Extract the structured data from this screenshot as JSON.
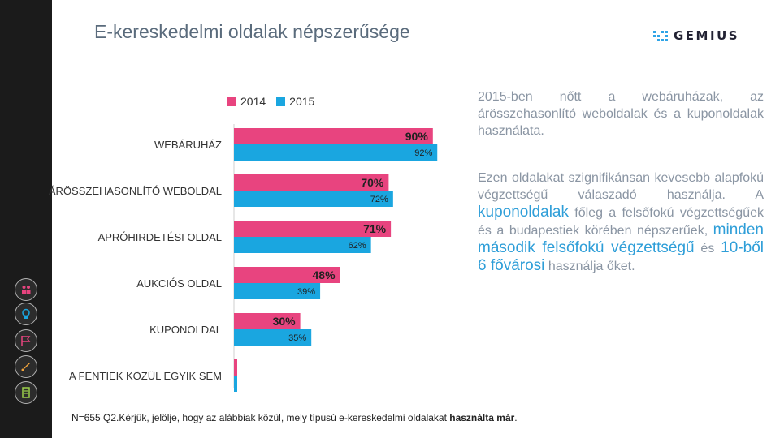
{
  "title": "E-kereskedelmi oldalak népszerűsége",
  "logo": {
    "text": "GEMIUS",
    "icon": "gemius-dots-logo"
  },
  "sidebar": {
    "icons": [
      "people-icon",
      "lightbulb-icon",
      "cart-flag-icon",
      "rocket-icon",
      "document-icon"
    ]
  },
  "colors": {
    "2014": "#e8447f",
    "2015": "#1aa6e0",
    "sidebar": "#1b1b1b",
    "highlight": "#2e9ed8"
  },
  "chart_data": {
    "type": "bar",
    "orientation": "horizontal",
    "categories": [
      "WEBÁRUHÁZ",
      "ÁRÖSSZEHASONLÍTÓ WEBOLDAL",
      "APRÓHIRDETÉSI OLDAL",
      "AUKCIÓS OLDAL",
      "KUPONOLDAL",
      "A FENTIEK KÖZÜL EGYIK SEM"
    ],
    "series": [
      {
        "name": "2014",
        "values": [
          90,
          70,
          71,
          48,
          30,
          1
        ],
        "labels": [
          "90%",
          "70%",
          "71%",
          "48%",
          "30%",
          ""
        ]
      },
      {
        "name": "2015",
        "values": [
          92,
          72,
          62,
          39,
          35,
          1
        ],
        "labels": [
          "92%",
          "72%",
          "62%",
          "39%",
          "35%",
          ""
        ]
      }
    ],
    "xlim": [
      0,
      100
    ],
    "legend_position": "top"
  },
  "text_block_1": "2015-ben nőtt a webáruházak, az árösszehasonlító weboldalak és a kuponoldalak használata.",
  "text_block_2": {
    "part1": "Ezen oldalakat szignifikánsan kevesebb alapfokú végzettségű válaszadó használja. A ",
    "hl1": "kuponoldalak",
    "part2": " főleg a felsőfokú végzettségűek és a budapestiek körében népszerűek, ",
    "hl2": "minden második felsőfokú végzettségű",
    "part3": " és ",
    "hl3": "10-ből 6 fővárosi",
    "part4": " használja őket."
  },
  "footnote": {
    "prefix": "N=655 Q2.Kérjük, jelölje, hogy az alábbiak közül, mely típusú e-kereskedelmi oldalakat ",
    "bold": "használta már",
    "suffix": "."
  }
}
